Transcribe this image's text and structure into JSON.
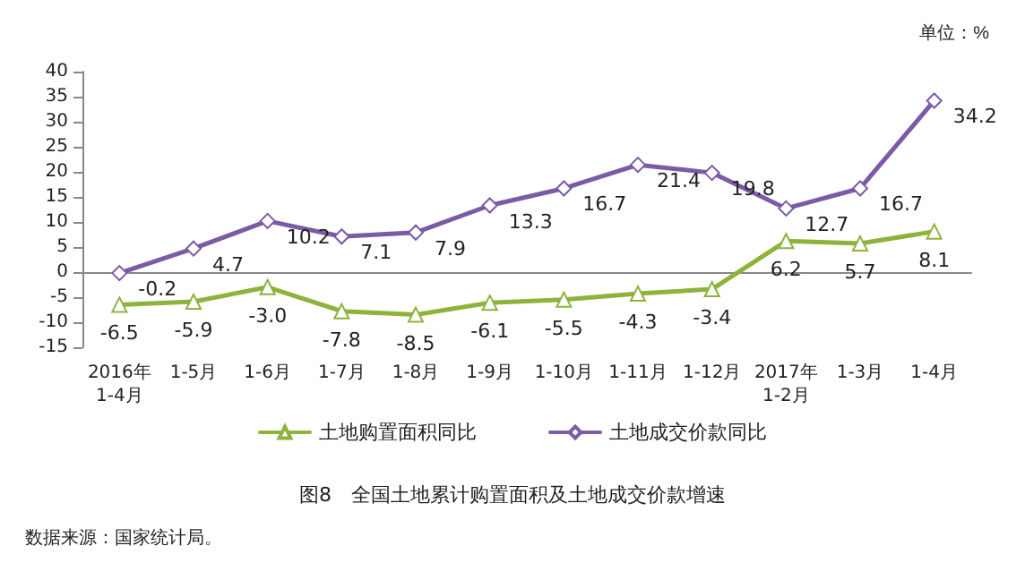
{
  "chart_data": {
    "type": "line",
    "title": "图8　全国土地累计购置面积及土地成交价款增速",
    "annotations": [
      "单位：%",
      "数据来源：国家统计局。"
    ],
    "categories": [
      "2016年\n1-4月",
      "1-5月",
      "1-6月",
      "1-7月",
      "1-8月",
      "1-9月",
      "1-10月",
      "1-11月",
      "1-12月",
      "2017年\n1-2月",
      "1-3月",
      "1-4月"
    ],
    "series": [
      {
        "name": "土地购置面积同比",
        "color": "#8db33a",
        "marker": "triangle",
        "values": [
          -6.5,
          -5.9,
          -3.0,
          -7.8,
          -8.5,
          -6.1,
          -5.5,
          -4.3,
          -3.4,
          6.2,
          5.7,
          8.1
        ],
        "value_labels": [
          "-6.5",
          "-5.9",
          "-3.0",
          "-7.8",
          "-8.5",
          "-6.1",
          "-5.5",
          "-4.3",
          "-3.4",
          "6.2",
          "5.7",
          "8.1"
        ]
      },
      {
        "name": "土地成交价款同比",
        "color": "#7b5aa6",
        "marker": "diamond",
        "values": [
          -0.2,
          4.7,
          10.2,
          7.1,
          7.9,
          13.3,
          16.7,
          21.4,
          19.8,
          12.7,
          16.7,
          34.2
        ],
        "value_labels": [
          "-0.2",
          "4.7",
          "10.2",
          "7.1",
          "7.9",
          "13.3",
          "16.7",
          "21.4",
          "19.8",
          "12.7",
          "16.7",
          "34.2"
        ]
      }
    ],
    "ylim": [
      -15,
      40
    ],
    "yticks": [
      -15,
      -10,
      -5,
      0,
      5,
      10,
      15,
      20,
      25,
      30,
      35,
      40
    ],
    "legend": "bottom",
    "line_style": "solid"
  }
}
